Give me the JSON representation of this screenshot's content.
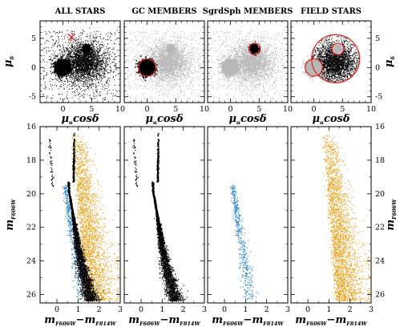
{
  "chart_data": [
    {
      "type": "scatter",
      "panel": "vpd",
      "title": "ALL STARS",
      "xlabel": "μαcosδ",
      "ylabel": "μδ",
      "xlim": [
        -4,
        10
      ],
      "ylim": [
        -6,
        8
      ],
      "xticks": [
        "0",
        "5",
        "10"
      ],
      "yticks": [
        "-5",
        "0",
        "5"
      ],
      "series": [
        {
          "color": "#000000",
          "points": "gc+sgr+field"
        }
      ],
      "annotations": [
        {
          "type": "cross",
          "x": 1.5,
          "y": 5.2,
          "color": "#e0201a"
        }
      ]
    },
    {
      "type": "scatter",
      "panel": "vpd",
      "title": "GC MEMBERS",
      "xlabel": "μαcosδ",
      "ylabel": "",
      "xlim": [
        -4,
        10
      ],
      "ylim": [
        -6,
        8
      ],
      "xticks": [
        "0",
        "5",
        "10"
      ],
      "selection": {
        "shape": "circle",
        "cx": 0,
        "cy": 0,
        "r": 1.5,
        "color": "#e0201a"
      }
    },
    {
      "type": "scatter",
      "panel": "vpd",
      "title": "SgrdSph MEMBERS",
      "xlabel": "μαcosδ",
      "ylabel": "",
      "xlim": [
        -4,
        10
      ],
      "ylim": [
        -6,
        8
      ],
      "xticks": [
        "0",
        "5",
        "10"
      ],
      "selection": {
        "shape": "circle",
        "cx": 4.2,
        "cy": 3.2,
        "r": 1.0,
        "color": "#e0201a"
      }
    },
    {
      "type": "scatter",
      "panel": "vpd",
      "title": "FIELD STARS",
      "xlabel": "μαcosδ",
      "ylabel": "μδ",
      "xlim": [
        -4,
        10
      ],
      "ylim": [
        -6,
        8
      ],
      "xticks": [
        "0",
        "5",
        "10"
      ],
      "yticks": [
        "-5",
        "0",
        "5"
      ],
      "selection": {
        "shape": "annulus-excluding-circles",
        "cx": 3.8,
        "cy": 1.5,
        "r": 4.2,
        "color": "#e0201a"
      }
    },
    {
      "type": "scatter",
      "panel": "cmd",
      "title": "",
      "xlabel": "mF606W−mF814W",
      "ylabel": "mF606W",
      "xlim": [
        -0.8,
        3
      ],
      "ylim": [
        26.5,
        16
      ],
      "xticks": [
        "0",
        "1",
        "2",
        "3"
      ],
      "yticks": [
        "16",
        "18",
        "20",
        "22",
        "24",
        "26"
      ],
      "series": [
        {
          "color": "#000000",
          "label": "GC members"
        },
        {
          "color": "#2e86c8",
          "label": "SgrdSph members"
        },
        {
          "color": "#e8a21c",
          "label": "field stars"
        }
      ]
    },
    {
      "type": "scatter",
      "panel": "cmd",
      "title": "",
      "xlabel": "mF606W−mF814W",
      "ylabel": "",
      "xlim": [
        -0.8,
        3
      ],
      "ylim": [
        26.5,
        16
      ],
      "xticks": [
        "0",
        "1",
        "2",
        "3"
      ],
      "series": [
        {
          "color": "#000000"
        }
      ]
    },
    {
      "type": "scatter",
      "panel": "cmd",
      "title": "",
      "xlabel": "mF606W−mF814W",
      "ylabel": "",
      "xlim": [
        -0.8,
        3
      ],
      "ylim": [
        26.5,
        16
      ],
      "xticks": [
        "0",
        "1",
        "2",
        "3"
      ],
      "series": [
        {
          "color": "#2e86c8"
        }
      ]
    },
    {
      "type": "scatter",
      "panel": "cmd",
      "title": "",
      "xlabel": "mF606W−mF814W",
      "ylabel": "mF606W",
      "xlim": [
        -0.8,
        3
      ],
      "ylim": [
        26.5,
        16
      ],
      "xticks": [
        "0",
        "1",
        "2",
        "3"
      ],
      "yticks": [
        "16",
        "18",
        "20",
        "22",
        "24",
        "26"
      ],
      "series": [
        {
          "color": "#e8a21c"
        }
      ]
    }
  ],
  "colors": {
    "gc": "#000000",
    "gc_faded": "#b8b8b8",
    "sgr": "#2e86c8",
    "field": "#e8a21c",
    "selection": "#e0201a"
  },
  "axis_text": {
    "mu_alpha": "μ",
    "mu_alpha_sub": "α",
    "cosdelta": "cosδ",
    "mu_delta": "μ",
    "mu_delta_sub": "δ",
    "m": "m",
    "f606": "F606W",
    "f814": "F814W",
    "minus": "−"
  }
}
